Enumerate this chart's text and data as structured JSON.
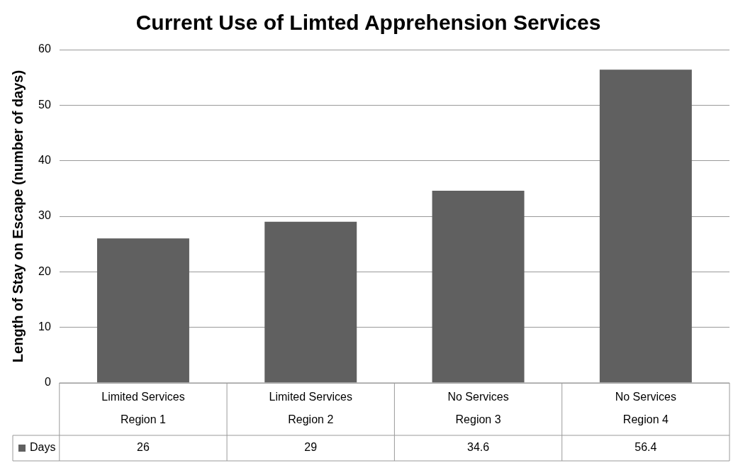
{
  "chart_data": {
    "type": "bar",
    "title": "Current Use of Limted Apprehension Services",
    "ylabel": "Length of Stay on Escape (number of days)",
    "categories": [
      "Limited Services\nRegion 1",
      "Limited Services\nRegion 2",
      "No Services\nRegion 3",
      "No Services\nRegion 4"
    ],
    "series": [
      {
        "name": "Days",
        "color": "#606060",
        "values": [
          26,
          29,
          34.6,
          56.4
        ]
      }
    ],
    "ylim": [
      0,
      60
    ],
    "yticks": [
      0,
      10,
      20,
      30,
      40,
      50,
      60
    ],
    "grid": "y",
    "data_labels": true
  }
}
